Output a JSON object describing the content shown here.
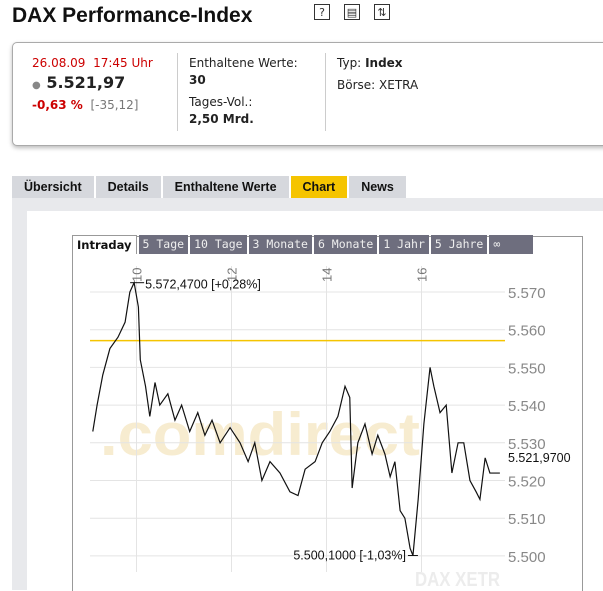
{
  "header": {
    "title": "DAX Performance-Index",
    "icons": [
      "help-icon",
      "print-icon",
      "swap-icon"
    ]
  },
  "quote": {
    "datetime": "26.08.09  17:45 Uhr",
    "price": "5.521,97",
    "change_pct": "-0,63 %",
    "change_abs": "[-35,12]",
    "constituents_label": "Enthaltene Werte:",
    "constituents": "30",
    "volume_label": "Tages-Vol.:",
    "volume": "2,50 Mrd.",
    "type_label": "Typ:",
    "type": "Index",
    "exchange_label": "Börse:",
    "exchange": "XETRA"
  },
  "tabs": [
    {
      "label": "Übersicht"
    },
    {
      "label": "Details"
    },
    {
      "label": "Enthaltene Werte"
    },
    {
      "label": "Chart",
      "active": true
    },
    {
      "label": "News"
    }
  ],
  "range_tabs": [
    {
      "label": "Intraday",
      "active": true
    },
    {
      "label": "5 Tage"
    },
    {
      "label": "10 Tage"
    },
    {
      "label": "3 Monate"
    },
    {
      "label": "6 Monate"
    },
    {
      "label": "1 Jahr"
    },
    {
      "label": "5 Jahre"
    },
    {
      "label": "∞"
    }
  ],
  "colors": {
    "accent": "#f5c400",
    "negative": "#cc0000",
    "tab_bg": "#d6d8dd",
    "range_tab_bg": "#6e6e7e"
  },
  "watermark": {
    "brand": ".comdirect",
    "symbol": "DAX XETR"
  },
  "chart_data": {
    "type": "line",
    "xlabel": "",
    "ylabel": "",
    "x_ticks": [
      10,
      12,
      14,
      16
    ],
    "y_ticks": [
      "5.500",
      "5.510",
      "5.520",
      "5.530",
      "5.540",
      "5.550",
      "5.560",
      "5.570"
    ],
    "ylim": [
      5497,
      5574
    ],
    "xlim": [
      9,
      17.75
    ],
    "grid": true,
    "reference_line": 5557.09,
    "reference_color": "#f5c400",
    "high_label": "5.572,4700 [+0,28%]",
    "low_label": "5.500,1000 [-1,03%]",
    "last_label": "5.521,9700",
    "x": [
      9.08,
      9.17,
      9.29,
      9.44,
      9.61,
      9.76,
      9.86,
      9.95,
      10.04,
      10.08,
      10.19,
      10.28,
      10.39,
      10.49,
      10.66,
      10.81,
      10.95,
      11.12,
      11.29,
      11.44,
      11.59,
      11.76,
      11.97,
      12.18,
      12.35,
      12.49,
      12.64,
      12.81,
      13.02,
      13.23,
      13.4,
      13.55,
      13.76,
      13.91,
      14.07,
      14.24,
      14.39,
      14.49,
      14.54,
      14.66,
      14.81,
      14.96,
      15.08,
      15.23,
      15.34,
      15.44,
      15.55,
      15.65,
      15.76,
      15.82,
      15.93,
      16.05,
      16.18,
      16.26,
      16.39,
      16.52,
      16.64,
      16.77,
      16.89,
      17.02,
      17.15,
      17.23,
      17.34,
      17.44,
      17.65
    ],
    "y": [
      5533,
      5540,
      5548,
      5555,
      5558,
      5562,
      5570,
      5572.47,
      5566,
      5552,
      5545,
      5537,
      5546,
      5540,
      5543,
      5536,
      5540,
      5533,
      5538,
      5532,
      5536,
      5530,
      5534,
      5530,
      5525,
      5530,
      5520,
      5525,
      5522,
      5517,
      5516,
      5523,
      5525,
      5530,
      5533,
      5537,
      5545,
      5542,
      5518,
      5530,
      5535,
      5527,
      5532,
      5527,
      5521,
      5525,
      5512,
      5510,
      5502,
      5500.1,
      5515,
      5535,
      5550,
      5545,
      5538,
      5540,
      5522,
      5530,
      5530,
      5520,
      5517,
      5515,
      5526,
      5521.97,
      5521.97
    ]
  }
}
